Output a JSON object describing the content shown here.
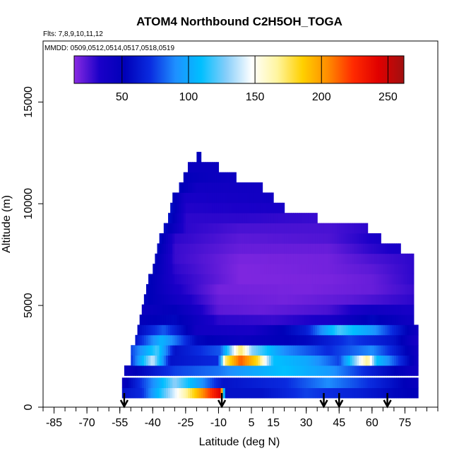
{
  "chart_data": {
    "type": "heatmap",
    "title": "ATOM4 Northbound C2H5OH_TOGA",
    "subtitle_flights": "Flts: 7,8,9,10,11,12",
    "subtitle_dates": "MMDD: 0509,0512,0514,0517,0518,0519",
    "xlabel": "Latitude (deg N)",
    "ylabel": "Altitude (m)",
    "xlim": [
      -90,
      90
    ],
    "ylim": [
      0,
      18000
    ],
    "x_ticks": [
      -85,
      -70,
      -55,
      -40,
      -25,
      -10,
      5,
      15,
      30,
      45,
      60,
      75
    ],
    "x_tick_labels": [
      "-85",
      "-70",
      "-55",
      "-40",
      "-25",
      "-10",
      "5",
      "15",
      "30",
      "45",
      "60",
      "75"
    ],
    "y_ticks": [
      0,
      5000,
      10000,
      15000
    ],
    "y_tick_labels": [
      "0",
      "5000",
      "10000",
      "15000"
    ],
    "colorbar": {
      "min": 14,
      "max": 262,
      "ticks": [
        50,
        100,
        150,
        200,
        250
      ],
      "tick_labels": [
        "50",
        "100",
        "150",
        "200",
        "250"
      ],
      "colors": [
        "#8a2be2",
        "#1a00c8",
        "#0000b8",
        "#0a2ce0",
        "#1e90ff",
        "#00bfff",
        "#87cefa",
        "#ffffff",
        "#fff5a0",
        "#ffd000",
        "#ff8c00",
        "#ff2a00",
        "#e00000",
        "#a01010"
      ]
    },
    "flight_markers_lat": [
      -53,
      -8.5,
      38,
      45,
      67
    ],
    "altitude_bins": [
      {
        "alt": 700,
        "min_lat": -54,
        "max_lat": 81,
        "value_profile": [
          [
            -54,
            60
          ],
          [
            -45,
            70
          ],
          [
            -35,
            120
          ],
          [
            -25,
            165
          ],
          [
            -15,
            215
          ],
          [
            -9,
            245
          ],
          [
            -7,
            60
          ],
          [
            10,
            60
          ],
          [
            30,
            75
          ],
          [
            55,
            65
          ],
          [
            70,
            55
          ],
          [
            81,
            50
          ]
        ]
      },
      {
        "alt": 1200,
        "min_lat": -54,
        "max_lat": 81,
        "value_profile": [
          [
            -54,
            45
          ],
          [
            -40,
            90
          ],
          [
            -30,
            130
          ],
          [
            -20,
            100
          ],
          [
            -8,
            60
          ],
          [
            20,
            70
          ],
          [
            40,
            90
          ],
          [
            60,
            70
          ],
          [
            81,
            45
          ]
        ]
      },
      {
        "alt": 1800,
        "min_lat": -53,
        "max_lat": 81,
        "value_profile": [
          [
            -53,
            45
          ],
          [
            -30,
            75
          ],
          [
            -10,
            85
          ],
          [
            0,
            95
          ],
          [
            20,
            110
          ],
          [
            40,
            95
          ],
          [
            60,
            65
          ],
          [
            81,
            40
          ]
        ]
      },
      {
        "alt": 2300,
        "min_lat": -50,
        "max_lat": 81,
        "value_profile": [
          [
            -50,
            70
          ],
          [
            -40,
            140
          ],
          [
            -32,
            60
          ],
          [
            -10,
            70
          ],
          [
            -7,
            170
          ],
          [
            0,
            215
          ],
          [
            8,
            180
          ],
          [
            15,
            110
          ],
          [
            30,
            100
          ],
          [
            45,
            75
          ],
          [
            58,
            170
          ],
          [
            62,
            110
          ],
          [
            81,
            40
          ]
        ]
      },
      {
        "alt": 2800,
        "min_lat": -50,
        "max_lat": 81,
        "value_profile": [
          [
            -50,
            75
          ],
          [
            -38,
            120
          ],
          [
            -30,
            60
          ],
          [
            -9,
            80
          ],
          [
            0,
            175
          ],
          [
            5,
            130
          ],
          [
            20,
            90
          ],
          [
            40,
            70
          ],
          [
            60,
            90
          ],
          [
            81,
            40
          ]
        ]
      },
      {
        "alt": 3300,
        "min_lat": -48,
        "max_lat": 81,
        "value_profile": [
          [
            -48,
            60
          ],
          [
            -36,
            105
          ],
          [
            -20,
            55
          ],
          [
            0,
            45
          ],
          [
            30,
            55
          ],
          [
            50,
            75
          ],
          [
            70,
            60
          ],
          [
            81,
            35
          ]
        ]
      },
      {
        "alt": 3800,
        "min_lat": -47,
        "max_lat": 81,
        "value_profile": [
          [
            -47,
            55
          ],
          [
            -35,
            80
          ],
          [
            -20,
            40
          ],
          [
            5,
            35
          ],
          [
            30,
            65
          ],
          [
            45,
            120
          ],
          [
            60,
            95
          ],
          [
            75,
            55
          ],
          [
            81,
            40
          ]
        ]
      },
      {
        "alt": 4300,
        "min_lat": -46,
        "max_lat": 79,
        "value_profile": [
          [
            -46,
            50
          ],
          [
            -30,
            55
          ],
          [
            -10,
            30
          ],
          [
            15,
            28
          ],
          [
            40,
            35
          ],
          [
            60,
            55
          ],
          [
            79,
            40
          ]
        ]
      },
      {
        "alt": 4800,
        "min_lat": -45,
        "max_lat": 79,
        "value_profile": [
          [
            -45,
            45
          ],
          [
            -30,
            50
          ],
          [
            -10,
            22
          ],
          [
            10,
            20
          ],
          [
            40,
            25
          ],
          [
            60,
            40
          ],
          [
            79,
            35
          ]
        ]
      },
      {
        "alt": 5300,
        "min_lat": -44,
        "max_lat": 79,
        "value_profile": [
          [
            -44,
            55
          ],
          [
            -30,
            40
          ],
          [
            -10,
            20
          ],
          [
            20,
            18
          ],
          [
            50,
            22
          ],
          [
            79,
            30
          ]
        ]
      },
      {
        "alt": 5800,
        "min_lat": -43,
        "max_lat": 79,
        "value_profile": [
          [
            -43,
            55
          ],
          [
            -30,
            35
          ],
          [
            -10,
            18
          ],
          [
            30,
            17
          ],
          [
            60,
            20
          ],
          [
            79,
            28
          ]
        ]
      },
      {
        "alt": 6300,
        "min_lat": -42,
        "max_lat": 79,
        "value_profile": [
          [
            -42,
            55
          ],
          [
            -30,
            32
          ],
          [
            0,
            16
          ],
          [
            40,
            17
          ],
          [
            60,
            20
          ],
          [
            79,
            30
          ]
        ]
      },
      {
        "alt": 6800,
        "min_lat": -40,
        "max_lat": 79,
        "value_profile": [
          [
            -40,
            55
          ],
          [
            -30,
            30
          ],
          [
            0,
            16
          ],
          [
            40,
            18
          ],
          [
            60,
            22
          ],
          [
            79,
            30
          ]
        ]
      },
      {
        "alt": 7300,
        "min_lat": -39,
        "max_lat": 79,
        "value_profile": [
          [
            -39,
            55
          ],
          [
            -30,
            28
          ],
          [
            0,
            17
          ],
          [
            40,
            18
          ],
          [
            60,
            25
          ],
          [
            79,
            30
          ]
        ]
      },
      {
        "alt": 7800,
        "min_lat": -38,
        "max_lat": 73,
        "value_profile": [
          [
            -38,
            58
          ],
          [
            -30,
            28
          ],
          [
            0,
            20
          ],
          [
            40,
            20
          ],
          [
            60,
            30
          ],
          [
            73,
            35
          ]
        ]
      },
      {
        "alt": 8300,
        "min_lat": -37,
        "max_lat": 64,
        "value_profile": [
          [
            -37,
            58
          ],
          [
            -30,
            30
          ],
          [
            0,
            22
          ],
          [
            40,
            24
          ],
          [
            64,
            35
          ]
        ]
      },
      {
        "alt": 8800,
        "min_lat": -35,
        "max_lat": 58,
        "value_profile": [
          [
            -35,
            58
          ],
          [
            -25,
            30
          ],
          [
            0,
            25
          ],
          [
            40,
            25
          ],
          [
            58,
            30
          ]
        ]
      },
      {
        "alt": 9300,
        "min_lat": -33,
        "max_lat": 35,
        "value_profile": [
          [
            -33,
            60
          ],
          [
            -25,
            30
          ],
          [
            0,
            30
          ],
          [
            35,
            28
          ]
        ]
      },
      {
        "alt": 9800,
        "min_lat": -32,
        "max_lat": 20,
        "value_profile": [
          [
            -32,
            60
          ],
          [
            -25,
            32
          ],
          [
            0,
            33
          ],
          [
            20,
            35
          ]
        ]
      },
      {
        "alt": 10300,
        "min_lat": -31,
        "max_lat": 15,
        "value_profile": [
          [
            -31,
            55
          ],
          [
            -25,
            35
          ],
          [
            0,
            38
          ],
          [
            15,
            40
          ]
        ]
      },
      {
        "alt": 10800,
        "min_lat": -28,
        "max_lat": 10,
        "value_profile": [
          [
            -28,
            55
          ],
          [
            -20,
            40
          ],
          [
            10,
            40
          ]
        ]
      },
      {
        "alt": 11300,
        "min_lat": -26,
        "max_lat": -2,
        "value_profile": [
          [
            -26,
            50
          ],
          [
            -15,
            45
          ],
          [
            -2,
            42
          ]
        ]
      },
      {
        "alt": 11800,
        "min_lat": -24,
        "max_lat": -10,
        "value_profile": [
          [
            -24,
            45
          ],
          [
            -10,
            45
          ]
        ]
      },
      {
        "alt": 12300,
        "min_lat": -20,
        "max_lat": -18,
        "value_profile": [
          [
            -20,
            50
          ],
          [
            -18,
            50
          ]
        ]
      }
    ]
  }
}
